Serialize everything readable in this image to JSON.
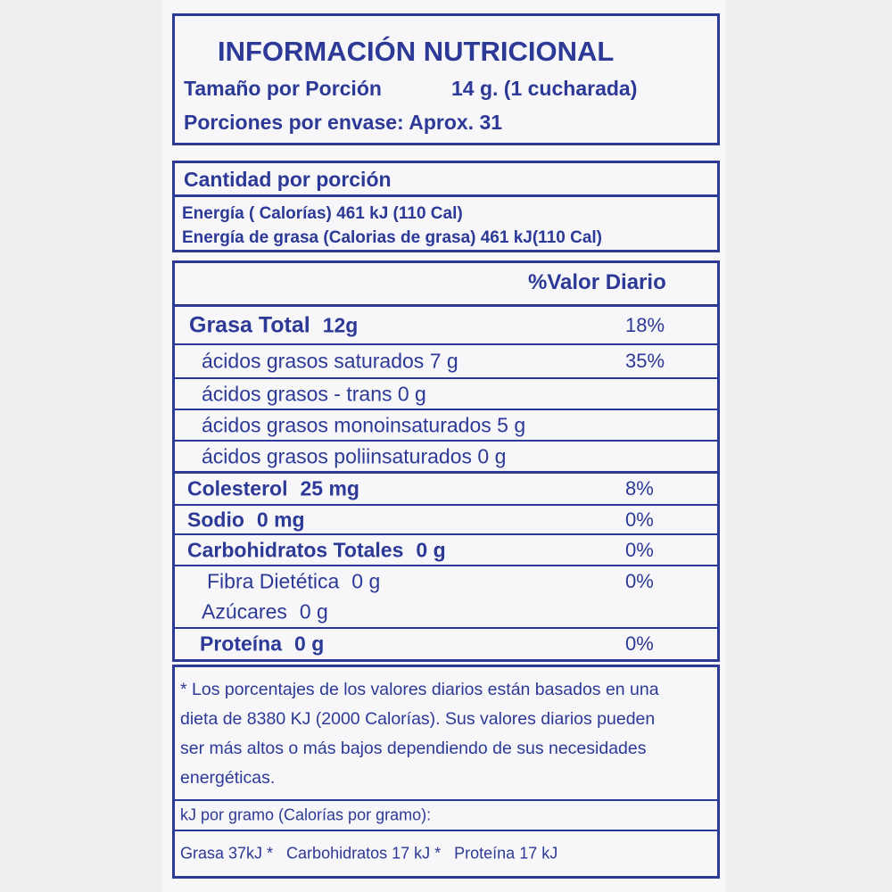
{
  "header": {
    "title": "INFORMACIÓN NUTRICIONAL",
    "serving_label": "Tamaño por Porción",
    "serving_size": "14 g. (1 cucharada)",
    "servings": "Porciones por envase: Aprox. 31"
  },
  "energy": {
    "heading": "Cantidad por porción",
    "lines": [
      "Energía ( Calorías) 461 kJ (110 Cal)",
      "Energía de grasa (Calorias de grasa) 461 kJ(110 Cal)"
    ]
  },
  "nutrients": {
    "heading": "%Valor Diario",
    "rows": [
      {
        "name": "Grasa Total",
        "amount": "12g",
        "daily_value": "18%"
      },
      {
        "name": "ácidos grasos saturados",
        "amount": "7 g",
        "daily_value": "35%"
      },
      {
        "name": "ácidos grasos - trans",
        "amount": "0 g"
      },
      {
        "name": "ácidos grasos monoinsaturados",
        "amount": "5 g"
      },
      {
        "name": "ácidos grasos poliinsaturados",
        "amount": "0 g"
      },
      {
        "name": "Colesterol",
        "amount": "25 mg",
        "daily_value": "8%"
      },
      {
        "name": "Sodio",
        "amount": "0 mg",
        "daily_value": "0%"
      },
      {
        "name": "Carbohidratos Totales",
        "amount": "0 g",
        "daily_value": "0%"
      },
      {
        "name": "Fibra Dietética",
        "amount": "0 g",
        "daily_value": "0%"
      },
      {
        "name": "Azúcares",
        "amount": "0 g"
      },
      {
        "name": "Proteína",
        "amount": "0 g",
        "daily_value": "0%"
      }
    ]
  },
  "footnote": {
    "lines": [
      "* Los porcentajes de los valores diarios están basados en una",
      "dieta de 8380 KJ (2000 Calorías). Sus valores diarios pueden",
      "ser más altos o más bajos dependiendo de sus necesidades",
      "energéticas."
    ],
    "conversion_heading": "kJ por gramo (Calorías por gramo):",
    "conversion": "Grasa 37kJ *   Carbohidratos 17 kJ *   Proteína 17 kJ"
  }
}
